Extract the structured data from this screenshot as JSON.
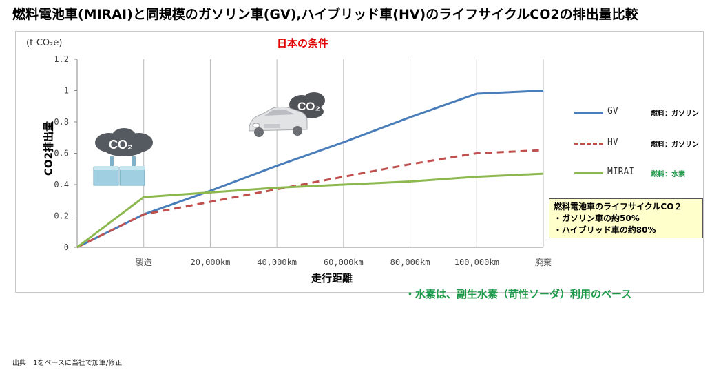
{
  "title": "燃料電池車(MIRAI)と同規模のガソリン車(GV),ハイブリッド車(HV)のライフサイクルCO2の排出量比較",
  "subtitle": "日本の条件",
  "unit_label": "(t-CO₂e)",
  "y_axis_title": "CO2排出量",
  "x_axis_title": "走行距離",
  "icons": {
    "factory": "factory-co2-icon",
    "car": "car-co2-icon",
    "co2_text": "CO₂"
  },
  "legend": [
    {
      "name": "GV",
      "note": "燃料：ガソリン",
      "color": "#4a7ebb",
      "dash": false
    },
    {
      "name": "HV",
      "note": "燃料：ガソリン",
      "color": "#c0504d",
      "dash": true
    },
    {
      "name": "MIRAI",
      "note": "燃料：水素",
      "color": "#8cb84f",
      "dash": false,
      "note_color": "#1f9a4a"
    }
  ],
  "callout": {
    "line1": "燃料電池車のライフサイクルCO２",
    "line2": "・ガソリン車の約50%",
    "line3": "・ハイブリッド車の約80%"
  },
  "hydrogen_note": "・水素は、副生水素（苛性ソーダ）利用のベース",
  "source": "出典　1をベースに当社で加筆/修正",
  "chart_data": {
    "type": "line",
    "title": "日本の条件",
    "xlabel": "走行距離",
    "ylabel": "CO2排出量",
    "y_unit": "(t-CO₂e)",
    "categories": [
      "",
      "製造",
      "20,000km",
      "40,000km",
      "60,000km",
      "80,000km",
      "100,000km",
      "廃棄"
    ],
    "ylim": [
      0,
      1.2
    ],
    "yticks": [
      0,
      0.2,
      0.4,
      0.6,
      0.8,
      1,
      1.2
    ],
    "ytick_labels": [
      "0",
      "0.2",
      "0.4",
      "0.6",
      "0.8",
      "1",
      "1.2"
    ],
    "grid": "vertical",
    "legend_position": "right",
    "series": [
      {
        "name": "GV",
        "color": "#4a7ebb",
        "dash": false,
        "values": [
          0,
          0.21,
          0.36,
          0.52,
          0.67,
          0.83,
          0.98,
          1.0
        ]
      },
      {
        "name": "HV",
        "color": "#c0504d",
        "dash": true,
        "values": [
          0,
          0.21,
          0.29,
          0.37,
          0.45,
          0.53,
          0.6,
          0.62
        ]
      },
      {
        "name": "MIRAI",
        "color": "#8cb84f",
        "dash": false,
        "values": [
          0,
          0.32,
          0.35,
          0.38,
          0.4,
          0.42,
          0.45,
          0.47
        ]
      }
    ]
  }
}
